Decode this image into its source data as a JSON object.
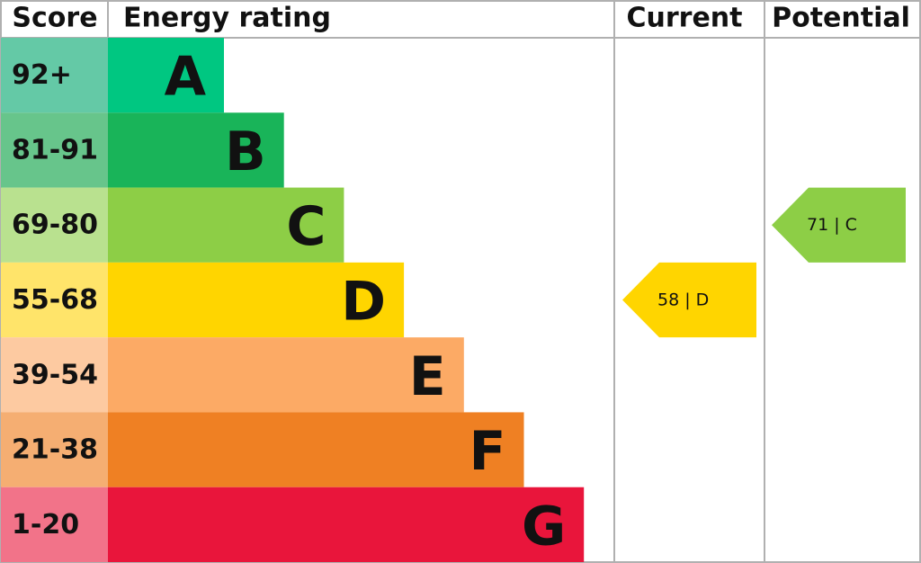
{
  "chart_data": {
    "type": "epc",
    "headers": {
      "score": "Score",
      "rating": "Energy rating",
      "current": "Current",
      "potential": "Potential"
    },
    "bands": [
      {
        "score": "92+",
        "letter": "A",
        "color": "#00c781",
        "score_color": "#64c9a6"
      },
      {
        "score": "81-91",
        "letter": "B",
        "color": "#19b459",
        "score_color": "#67c58b"
      },
      {
        "score": "69-80",
        "letter": "C",
        "color": "#8dce46",
        "score_color": "#b9e18f"
      },
      {
        "score": "55-68",
        "letter": "D",
        "color": "#ffd500",
        "score_color": "#ffe46a"
      },
      {
        "score": "39-54",
        "letter": "E",
        "color": "#fcaa65",
        "score_color": "#fdcaa1"
      },
      {
        "score": "21-38",
        "letter": "F",
        "color": "#ef8023",
        "score_color": "#f5ae72"
      },
      {
        "score": "1-20",
        "letter": "G",
        "color": "#e9153b",
        "score_color": "#f27389"
      }
    ],
    "current": {
      "value": 58,
      "label": "58 | D"
    },
    "potential": {
      "value": 71,
      "label": "71 | C"
    }
  }
}
